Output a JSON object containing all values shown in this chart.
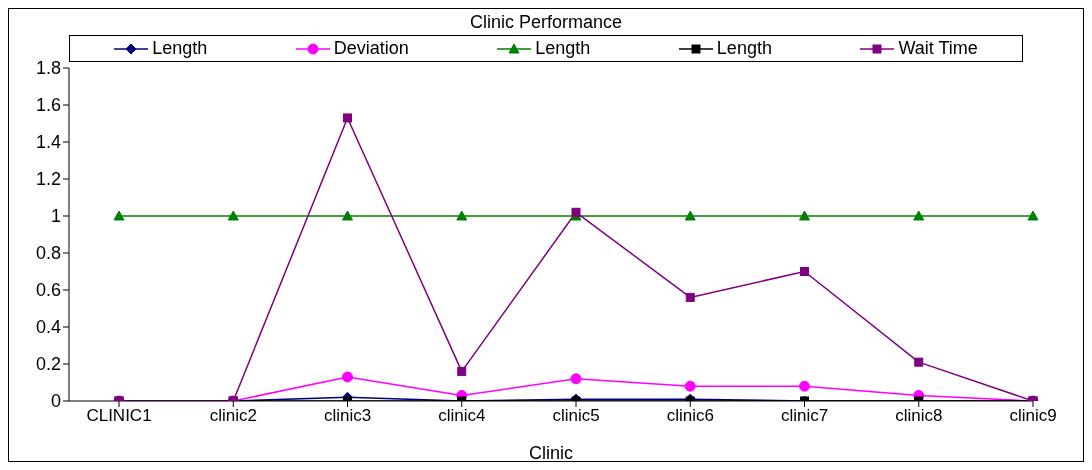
{
  "chart_data": {
    "type": "line",
    "title": "Clinic Performance",
    "xlabel": "Clinic",
    "categories": [
      "CLINIC1",
      "clinic2",
      "clinic3",
      "clinic4",
      "clinic5",
      "clinic6",
      "clinic7",
      "clinic8",
      "clinic9"
    ],
    "series": [
      {
        "name": "Length",
        "color": "#000080",
        "marker": "diamond",
        "values": [
          0,
          0,
          0.02,
          0,
          0.01,
          0.01,
          0,
          0,
          0
        ]
      },
      {
        "name": "Deviation",
        "color": "#ff00ff",
        "marker": "circle",
        "values": [
          0,
          0,
          0.13,
          0.03,
          0.12,
          0.08,
          0.08,
          0.03,
          0
        ]
      },
      {
        "name": "Length",
        "color": "#008000",
        "marker": "triangle",
        "values": [
          1,
          1,
          1,
          1,
          1,
          1,
          1,
          1,
          1
        ]
      },
      {
        "name": "Length",
        "color": "#000000",
        "marker": "square",
        "values": [
          0,
          0,
          0,
          0,
          0,
          0,
          0,
          0,
          0
        ]
      },
      {
        "name": "Wait Time",
        "color": "#800080",
        "marker": "square",
        "values": [
          0,
          0,
          1.53,
          0.16,
          1.02,
          0.56,
          0.7,
          0.21,
          0
        ]
      }
    ],
    "ylim": [
      0,
      1.8
    ],
    "yticks": [
      0,
      0.2,
      0.4,
      0.6,
      0.8,
      1,
      1.2,
      1.4,
      1.6,
      1.8
    ],
    "grid": false,
    "legend": "top",
    "line_style": "solid"
  }
}
